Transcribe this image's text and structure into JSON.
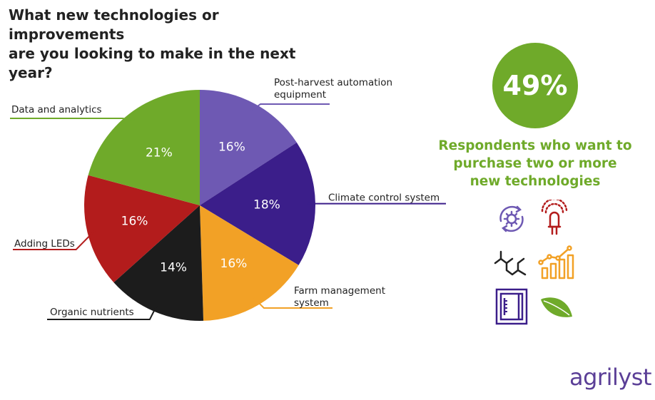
{
  "title_lines": [
    "What new technologies or improvements",
    "are you looking to make in the next year?"
  ],
  "chart_data": {
    "type": "pie",
    "title": "What new technologies or improvements are you looking to make in the next year?",
    "slices": [
      {
        "label": "Post-harvest automation equipment",
        "label_lines": [
          "Post-harvest automation",
          "equipment"
        ],
        "value": 16,
        "value_label": "16%",
        "color": "#6e59b3"
      },
      {
        "label": "Climate control system",
        "label_lines": [
          "Climate control system"
        ],
        "value": 18,
        "value_label": "18%",
        "color": "#3b1e8a"
      },
      {
        "label": "Farm management system",
        "label_lines": [
          "Farm management",
          "system"
        ],
        "value": 16,
        "value_label": "16%",
        "color": "#f2a126"
      },
      {
        "label": "Organic nutrients",
        "label_lines": [
          "Organic nutrients"
        ],
        "value": 14,
        "value_label": "14%",
        "color": "#1c1c1c"
      },
      {
        "label": "Adding LEDs",
        "label_lines": [
          "Adding LEDs"
        ],
        "value": 16,
        "value_label": "16%",
        "color": "#b31c1c"
      },
      {
        "label": "Data and analytics",
        "label_lines": [
          "Data and analytics"
        ],
        "value": 21,
        "value_label": "21%",
        "color": "#6faa2a"
      }
    ]
  },
  "stat": {
    "value": "49%",
    "caption_lines": [
      "Respondents who want to",
      "purchase two or more",
      "new technologies"
    ],
    "color": "#6faa2a"
  },
  "icons": [
    "automation-gear-icon",
    "led-light-icon",
    "nutrient-molecule-icon",
    "analytics-chart-icon",
    "climate-control-panel-icon",
    "leaf-icon"
  ],
  "logo": "agrilyst"
}
